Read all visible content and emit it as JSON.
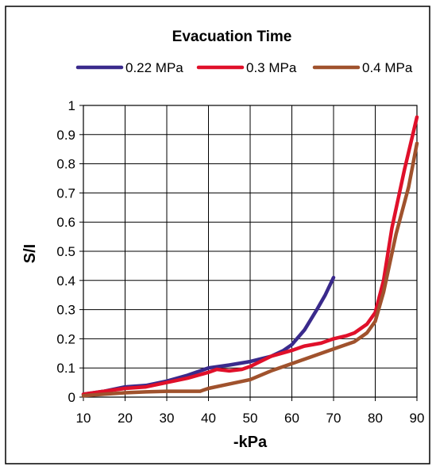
{
  "chart_data": {
    "type": "line",
    "title": "Evacuation Time",
    "xlabel": "-kPa",
    "ylabel": "S/I",
    "xlim": [
      10,
      90
    ],
    "ylim": [
      0,
      1
    ],
    "x_ticks": [
      "10",
      "20",
      "30",
      "40",
      "50",
      "60",
      "70",
      "80",
      "90"
    ],
    "y_ticks": [
      "0",
      "0.1",
      "0.2",
      "0.3",
      "0.4",
      "0.5",
      "0.6",
      "0.7",
      "0.8",
      "0.9",
      "1"
    ],
    "grid": true,
    "legend_position": "top",
    "series": [
      {
        "name": "0.22 MPa",
        "color": "#3a2a8c",
        "points": [
          [
            10,
            0.01
          ],
          [
            15,
            0.02
          ],
          [
            20,
            0.035
          ],
          [
            25,
            0.04
          ],
          [
            30,
            0.055
          ],
          [
            35,
            0.075
          ],
          [
            40,
            0.1
          ],
          [
            45,
            0.11
          ],
          [
            50,
            0.122
          ],
          [
            55,
            0.14
          ],
          [
            58,
            0.16
          ],
          [
            60,
            0.18
          ],
          [
            63,
            0.23
          ],
          [
            66,
            0.3
          ],
          [
            68,
            0.35
          ],
          [
            70,
            0.41
          ]
        ]
      },
      {
        "name": "0.3 MPa",
        "color": "#e0102a",
        "points": [
          [
            10,
            0.01
          ],
          [
            15,
            0.02
          ],
          [
            20,
            0.03
          ],
          [
            25,
            0.035
          ],
          [
            30,
            0.05
          ],
          [
            35,
            0.065
          ],
          [
            40,
            0.085
          ],
          [
            42,
            0.095
          ],
          [
            45,
            0.09
          ],
          [
            48,
            0.095
          ],
          [
            50,
            0.105
          ],
          [
            55,
            0.14
          ],
          [
            60,
            0.16
          ],
          [
            63,
            0.175
          ],
          [
            67,
            0.185
          ],
          [
            70,
            0.2
          ],
          [
            73,
            0.21
          ],
          [
            75,
            0.22
          ],
          [
            78,
            0.25
          ],
          [
            80,
            0.29
          ],
          [
            82,
            0.4
          ],
          [
            84,
            0.58
          ],
          [
            87,
            0.78
          ],
          [
            90,
            0.96
          ]
        ]
      },
      {
        "name": "0.4 MPa",
        "color": "#a0522d",
        "points": [
          [
            10,
            0.005
          ],
          [
            15,
            0.01
          ],
          [
            20,
            0.015
          ],
          [
            25,
            0.018
          ],
          [
            30,
            0.02
          ],
          [
            35,
            0.02
          ],
          [
            38,
            0.02
          ],
          [
            40,
            0.03
          ],
          [
            45,
            0.045
          ],
          [
            50,
            0.06
          ],
          [
            55,
            0.09
          ],
          [
            60,
            0.115
          ],
          [
            65,
            0.14
          ],
          [
            70,
            0.165
          ],
          [
            75,
            0.19
          ],
          [
            78,
            0.22
          ],
          [
            80,
            0.26
          ],
          [
            82,
            0.36
          ],
          [
            85,
            0.56
          ],
          [
            88,
            0.72
          ],
          [
            90,
            0.87
          ]
        ]
      }
    ]
  }
}
